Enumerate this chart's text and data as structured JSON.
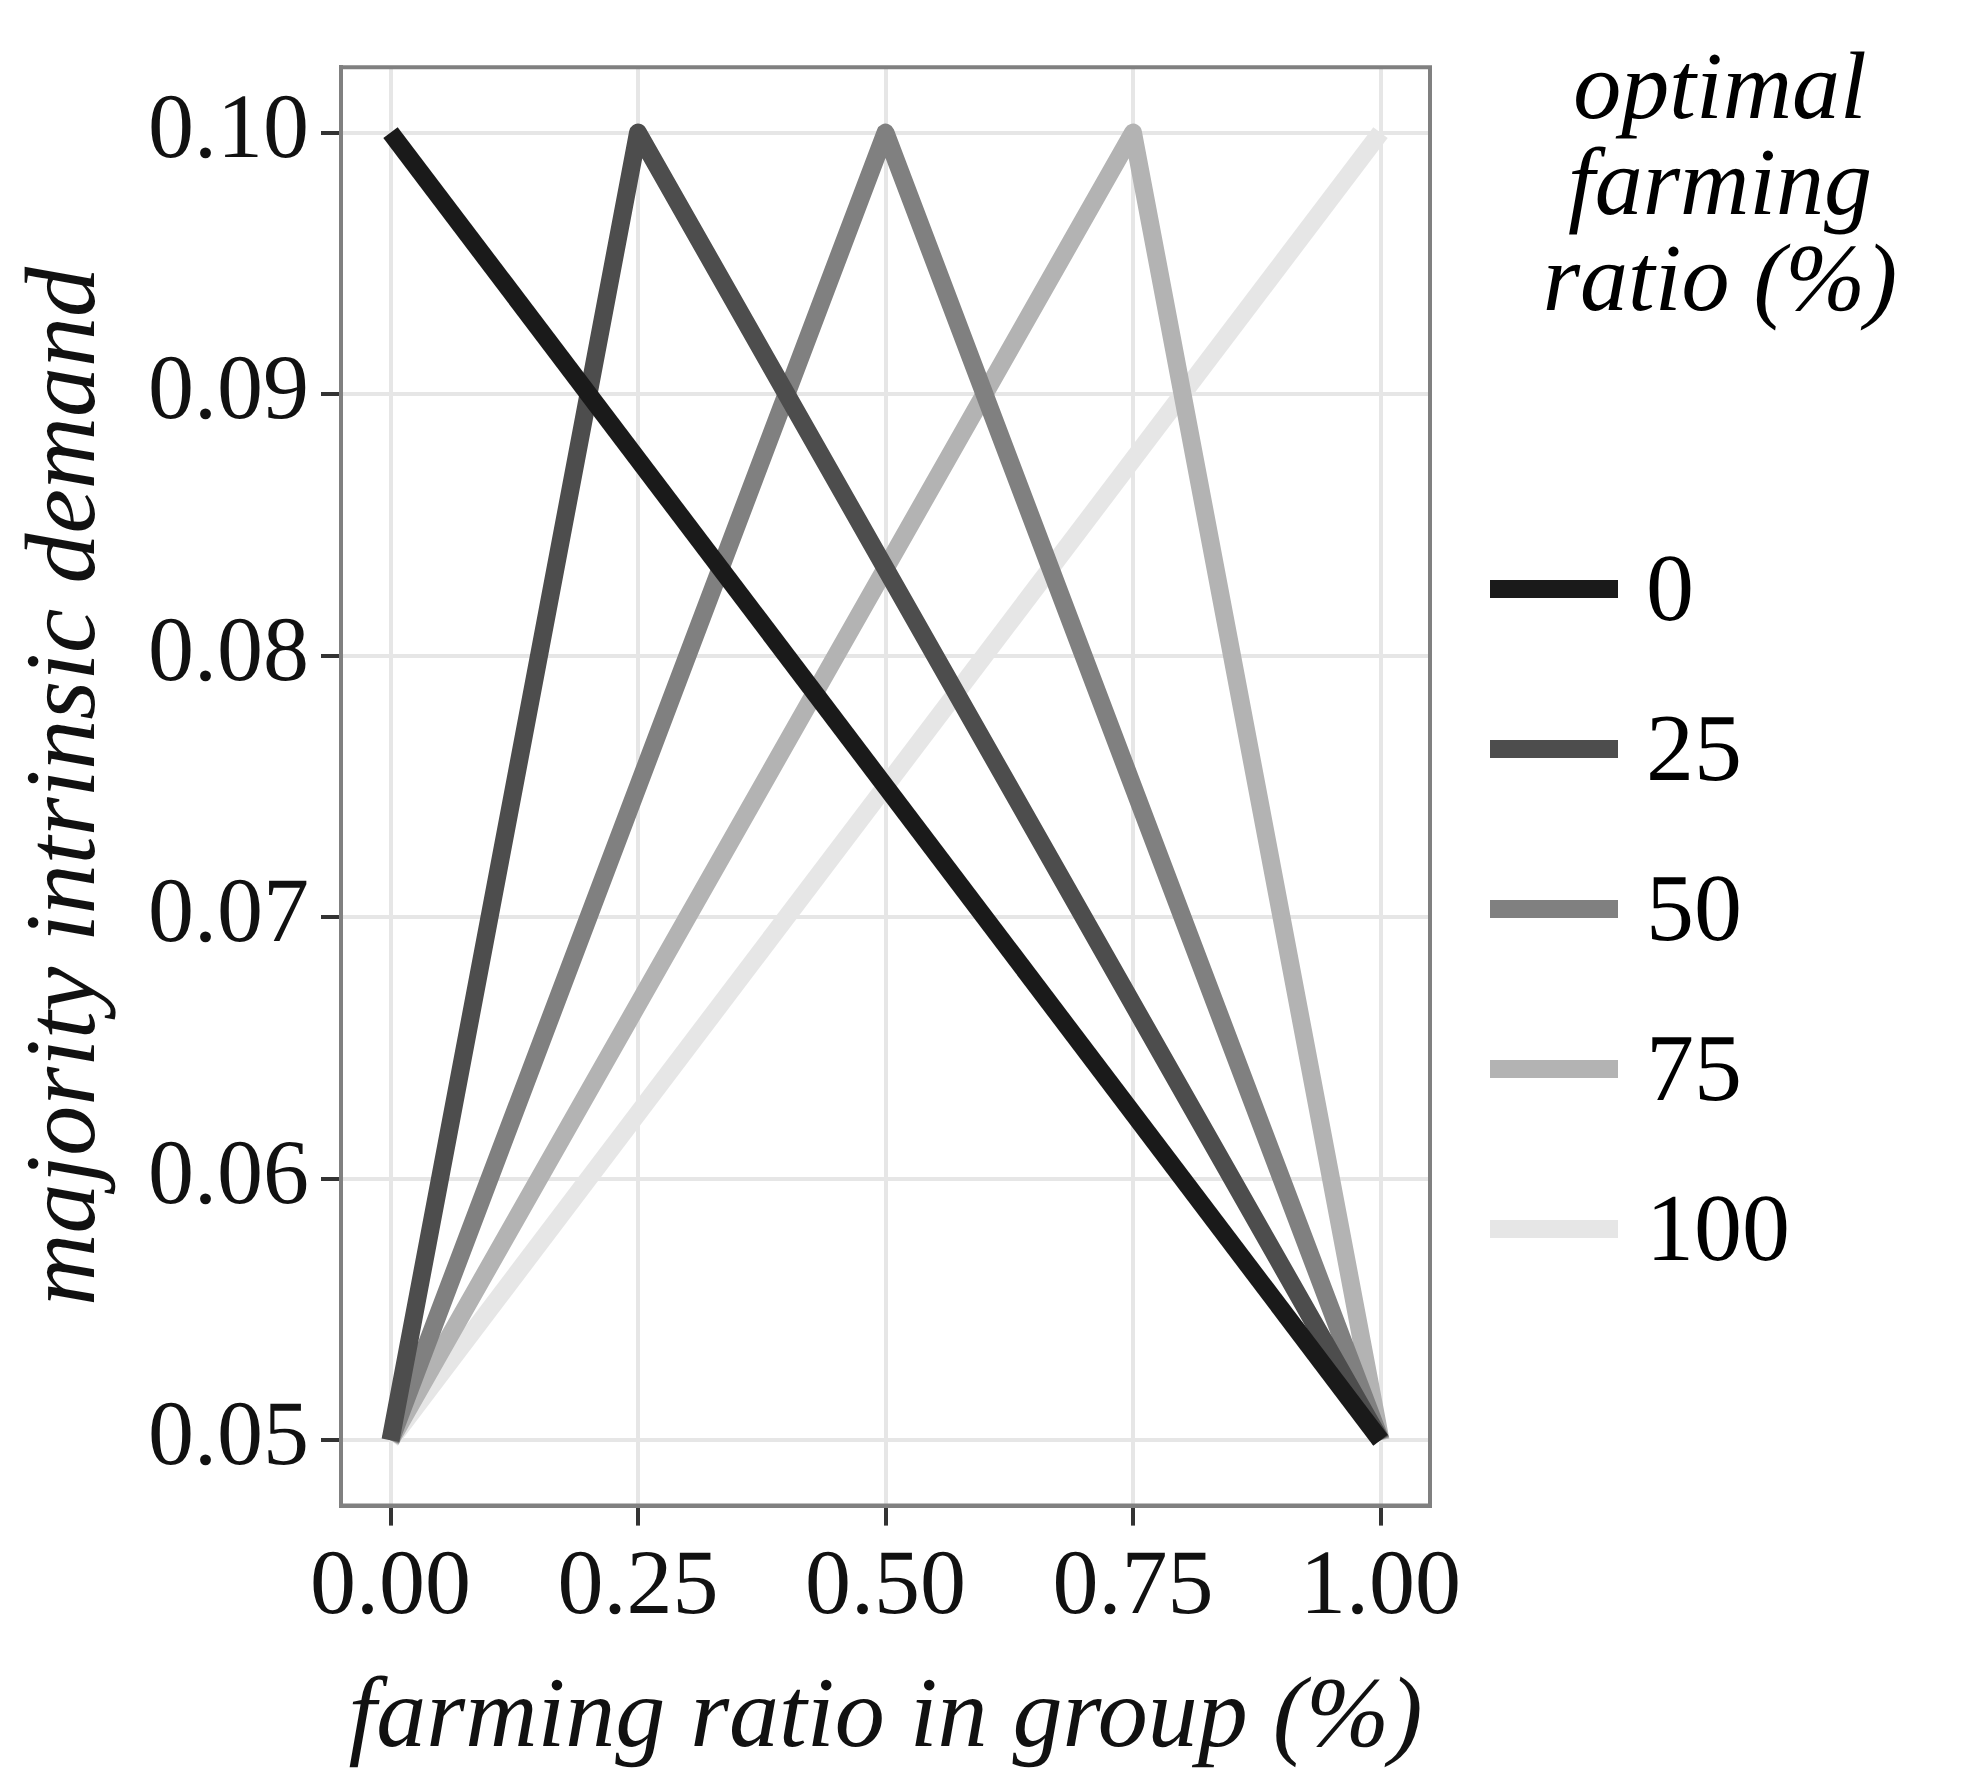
{
  "chart_data": {
    "type": "line",
    "xlabel": "farming ratio in group (%)",
    "ylabel": "majority intrinsic demand",
    "legend_title": "optimal farming ratio (%)",
    "legend": "right",
    "grid": true,
    "marker": "none",
    "line_style": "solid",
    "xlim": [
      -0.05,
      1.05
    ],
    "xticks": [
      {
        "value": 0,
        "label": "0.00"
      },
      {
        "value": 0.25,
        "label": "0.25"
      },
      {
        "value": 0.5,
        "label": "0.50"
      },
      {
        "value": 0.75,
        "label": "0.75"
      },
      {
        "value": 1,
        "label": "1.00"
      }
    ],
    "ylim": [
      0.0475,
      0.1025
    ],
    "yticks": [
      {
        "value": 0.05,
        "label": "0.05"
      },
      {
        "value": 0.06,
        "label": "0.06"
      },
      {
        "value": 0.07,
        "label": "0.07"
      },
      {
        "value": 0.08,
        "label": "0.08"
      },
      {
        "value": 0.09,
        "label": "0.09"
      },
      {
        "value": 0.1,
        "label": "0.10"
      }
    ],
    "series": [
      {
        "name": "0",
        "color": "#1a1a1a",
        "x": [
          0,
          1
        ],
        "values": [
          0.1,
          0.05
        ]
      },
      {
        "name": "25",
        "color": "#4d4d4d",
        "x": [
          0,
          0.25,
          1
        ],
        "values": [
          0.05,
          0.1,
          0.05
        ]
      },
      {
        "name": "50",
        "color": "#808080",
        "x": [
          0,
          0.5,
          1
        ],
        "values": [
          0.05,
          0.1,
          0.05
        ]
      },
      {
        "name": "75",
        "color": "#b3b3b3",
        "x": [
          0,
          0.75,
          1
        ],
        "values": [
          0.05,
          0.1,
          0.05
        ]
      },
      {
        "name": "100",
        "color": "#e6e6e6",
        "x": [
          0,
          1
        ],
        "values": [
          0.05,
          0.1
        ]
      }
    ]
  }
}
